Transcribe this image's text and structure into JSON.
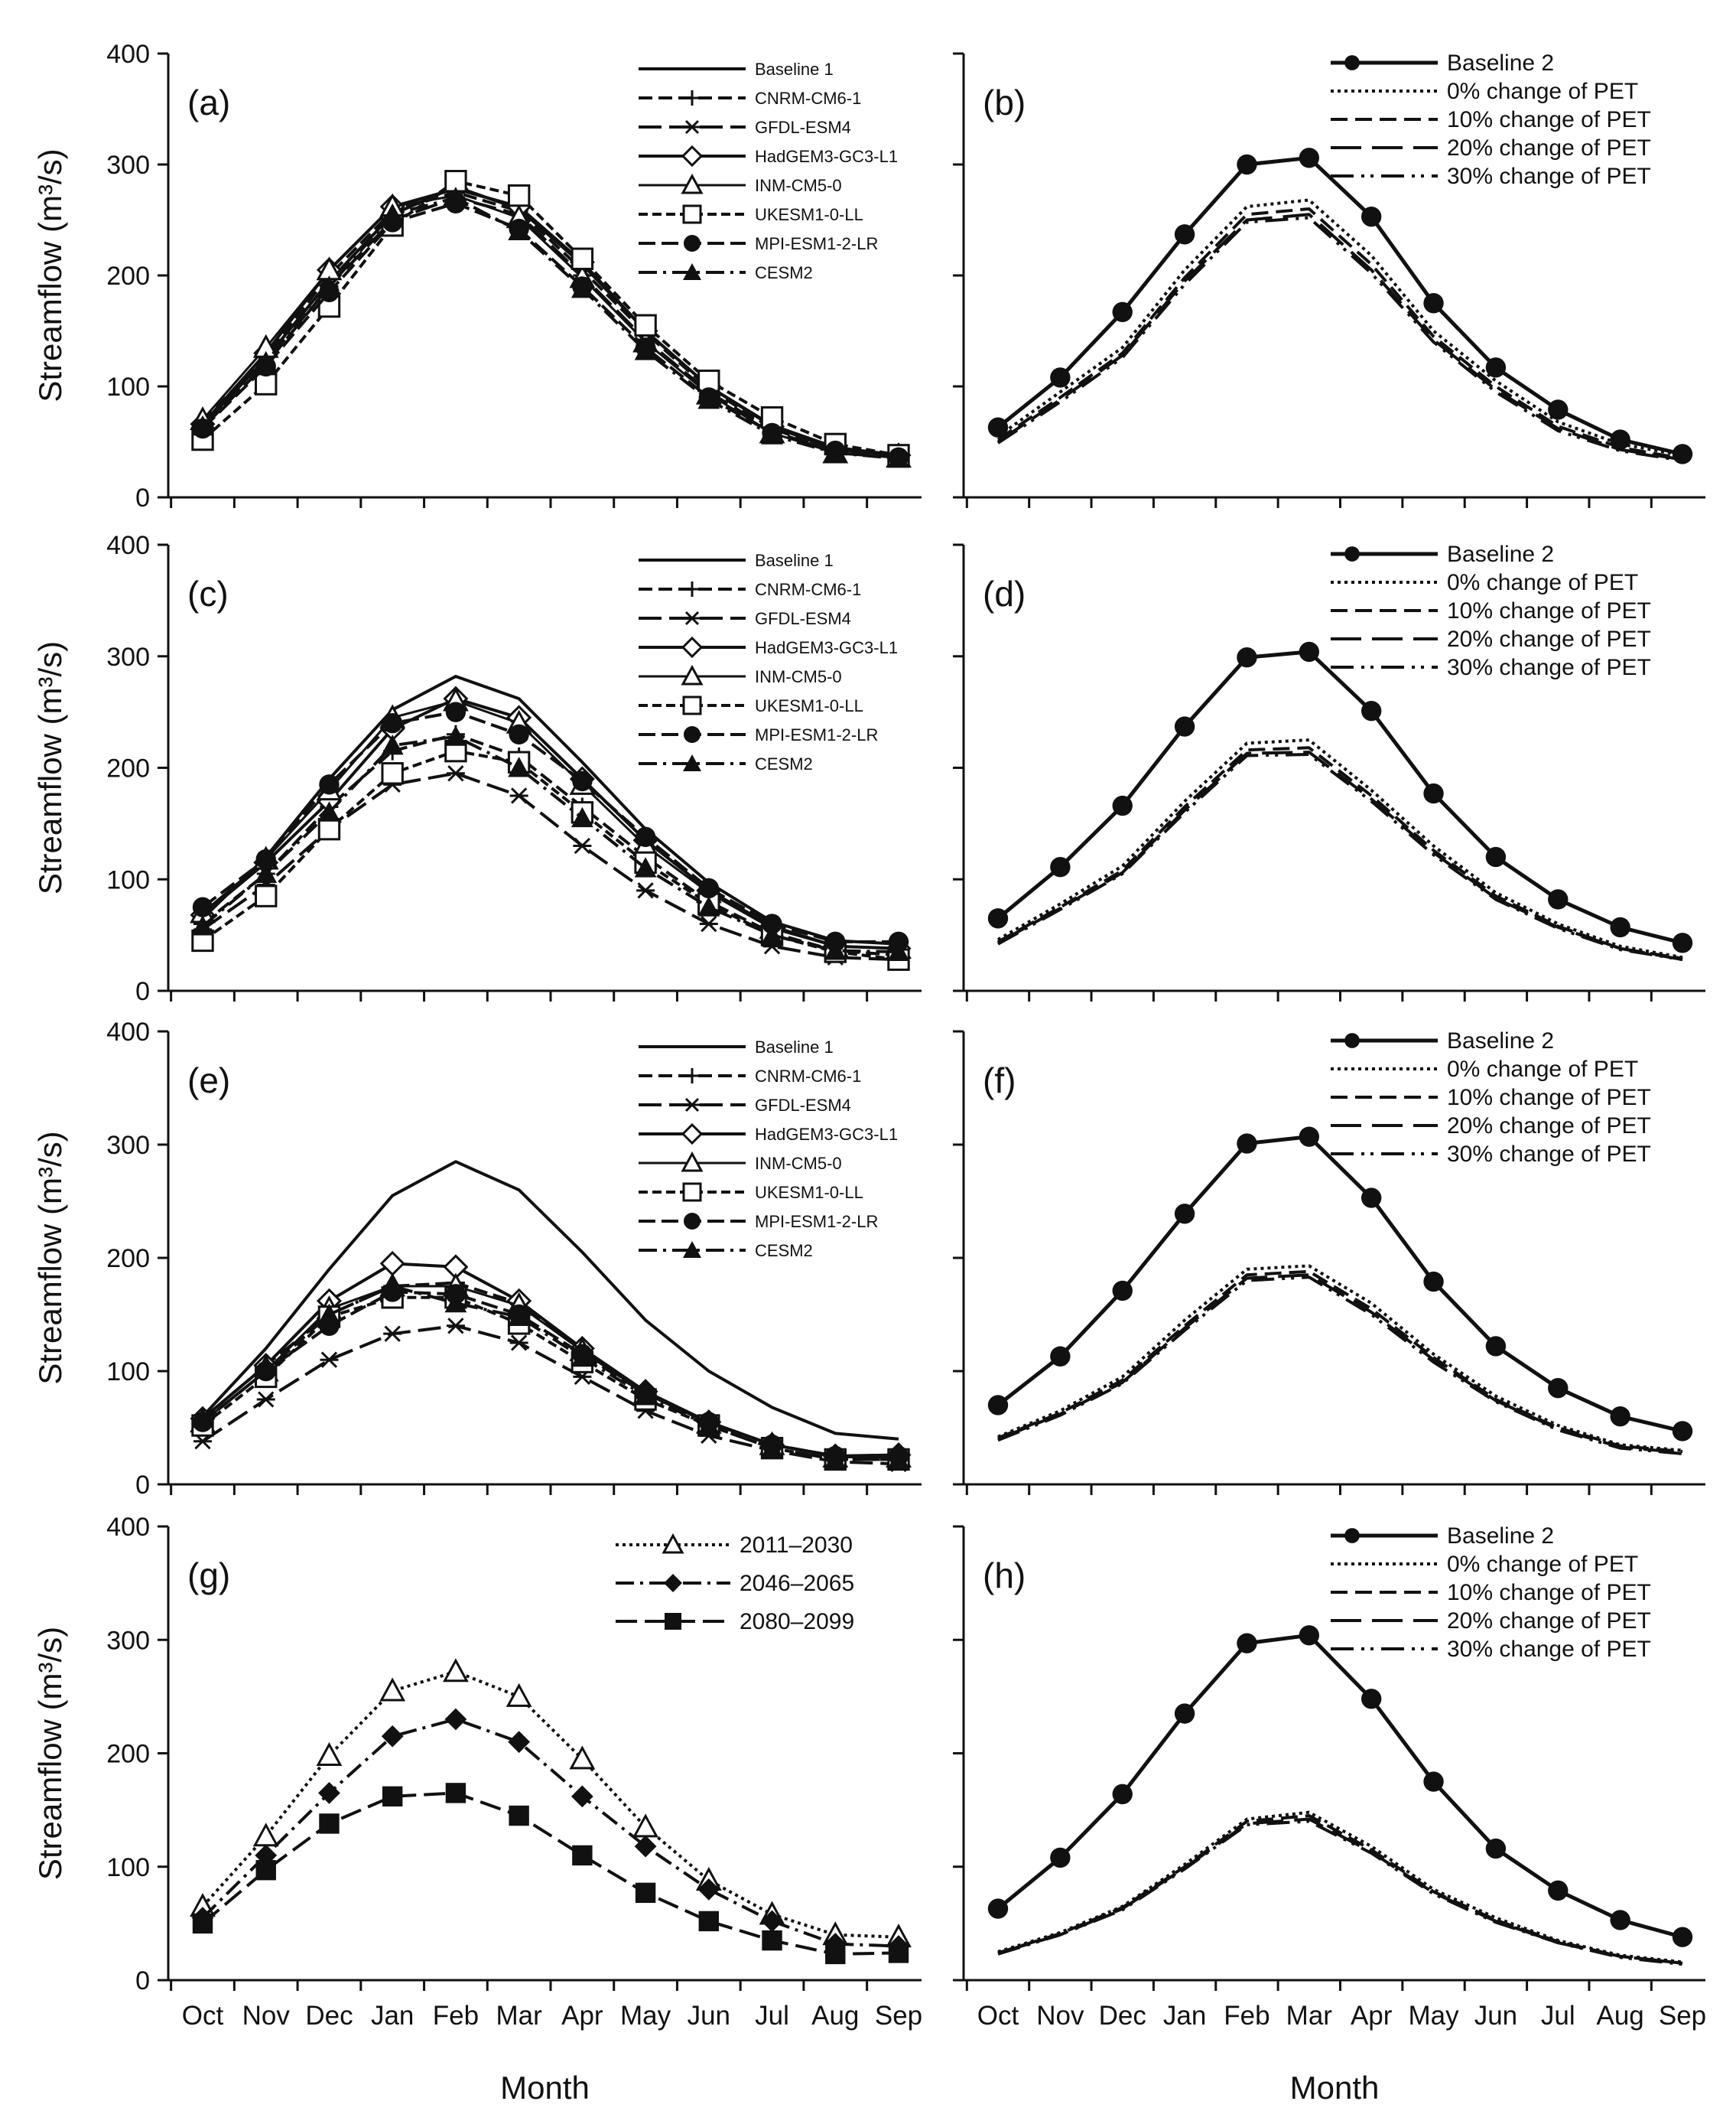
{
  "figure": {
    "xlabel": "Month",
    "ylabel": "Streamflow (m³/s)",
    "months": [
      "Oct",
      "Nov",
      "Dec",
      "Jan",
      "Feb",
      "Mar",
      "Apr",
      "May",
      "Jun",
      "Jul",
      "Aug",
      "Sep"
    ],
    "yticks": [
      "0",
      "100",
      "200",
      "300",
      "400"
    ]
  },
  "chart_data": [
    {
      "panel": "(a)",
      "type": "line",
      "ylim": [
        0,
        400
      ],
      "categories": [
        "Oct",
        "Nov",
        "Dec",
        "Jan",
        "Feb",
        "Mar",
        "Apr",
        "May",
        "Jun",
        "Jul",
        "Aug",
        "Sep"
      ],
      "series": [
        {
          "name": "Baseline 1",
          "values": [
            65,
            125,
            195,
            255,
            280,
            260,
            210,
            150,
            100,
            65,
            45,
            38
          ]
        },
        {
          "name": "CNRM-CM6-1",
          "values": [
            68,
            128,
            200,
            258,
            275,
            258,
            205,
            148,
            98,
            62,
            42,
            37
          ]
        },
        {
          "name": "GFDL-ESM4",
          "values": [
            63,
            120,
            190,
            250,
            270,
            255,
            200,
            142,
            95,
            60,
            40,
            36
          ]
        },
        {
          "name": "HadGEM3-GC3-L1",
          "values": [
            66,
            130,
            205,
            262,
            278,
            262,
            212,
            150,
            100,
            64,
            43,
            38
          ]
        },
        {
          "name": "INM-CM5-0",
          "values": [
            70,
            135,
            205,
            262,
            272,
            252,
            198,
            140,
            93,
            58,
            40,
            36
          ]
        },
        {
          "name": "UKESM1-0-LL",
          "values": [
            52,
            102,
            172,
            245,
            285,
            272,
            215,
            155,
            105,
            72,
            48,
            38
          ]
        },
        {
          "name": "MPI-ESM1-2-LR",
          "values": [
            62,
            118,
            185,
            248,
            265,
            242,
            190,
            135,
            90,
            58,
            42,
            36
          ]
        },
        {
          "name": "CESM2",
          "values": [
            64,
            122,
            190,
            255,
            270,
            240,
            188,
            132,
            88,
            56,
            40,
            35
          ]
        }
      ]
    },
    {
      "panel": "(b)",
      "type": "line",
      "ylim": [
        0,
        400
      ],
      "categories": [
        "Oct",
        "Nov",
        "Dec",
        "Jan",
        "Feb",
        "Mar",
        "Apr",
        "May",
        "Jun",
        "Jul",
        "Aug",
        "Sep"
      ],
      "series": [
        {
          "name": "Baseline 2",
          "values": [
            63,
            108,
            167,
            237,
            300,
            306,
            253,
            175,
            117,
            79,
            52,
            39
          ]
        },
        {
          "name": "0% change of PET",
          "values": [
            55,
            95,
            135,
            205,
            262,
            268,
            218,
            150,
            105,
            68,
            48,
            38
          ]
        },
        {
          "name": "10% change of PET",
          "values": [
            52,
            90,
            130,
            198,
            255,
            260,
            210,
            145,
            100,
            64,
            45,
            35
          ]
        },
        {
          "name": "20% change of PET",
          "values": [
            50,
            88,
            128,
            195,
            250,
            255,
            205,
            142,
            97,
            62,
            43,
            34
          ]
        },
        {
          "name": "30% change of PET",
          "values": [
            49,
            86,
            126,
            192,
            248,
            252,
            202,
            140,
            95,
            60,
            42,
            33
          ]
        }
      ]
    },
    {
      "panel": "(c)",
      "type": "line",
      "ylim": [
        0,
        400
      ],
      "categories": [
        "Oct",
        "Nov",
        "Dec",
        "Jan",
        "Feb",
        "Mar",
        "Apr",
        "May",
        "Jun",
        "Jul",
        "Aug",
        "Sep"
      ],
      "series": [
        {
          "name": "Baseline 1",
          "values": [
            65,
            120,
            190,
            252,
            282,
            262,
            205,
            145,
            97,
            62,
            45,
            42
          ]
        },
        {
          "name": "CNRM-CM6-1",
          "values": [
            60,
            105,
            165,
            215,
            230,
            210,
            165,
            120,
            80,
            52,
            36,
            32
          ]
        },
        {
          "name": "GFDL-ESM4",
          "values": [
            55,
            95,
            145,
            185,
            195,
            175,
            130,
            90,
            60,
            40,
            30,
            28
          ]
        },
        {
          "name": "HadGEM3-GC3-L1",
          "values": [
            68,
            115,
            170,
            235,
            262,
            245,
            190,
            135,
            90,
            58,
            40,
            38
          ]
        },
        {
          "name": "INM-CM5-0",
          "values": [
            70,
            118,
            180,
            245,
            260,
            240,
            185,
            130,
            88,
            56,
            40,
            38
          ]
        },
        {
          "name": "UKESM1-0-LL",
          "values": [
            45,
            85,
            145,
            195,
            215,
            205,
            160,
            115,
            78,
            50,
            35,
            28
          ]
        },
        {
          "name": "MPI-ESM1-2-LR",
          "values": [
            75,
            118,
            185,
            240,
            250,
            230,
            188,
            138,
            92,
            60,
            44,
            44
          ]
        },
        {
          "name": "CESM2",
          "values": [
            58,
            105,
            160,
            220,
            228,
            200,
            155,
            110,
            75,
            50,
            36,
            35
          ]
        }
      ]
    },
    {
      "panel": "(d)",
      "type": "line",
      "ylim": [
        0,
        400
      ],
      "categories": [
        "Oct",
        "Nov",
        "Dec",
        "Jan",
        "Feb",
        "Mar",
        "Apr",
        "May",
        "Jun",
        "Jul",
        "Aug",
        "Sep"
      ],
      "series": [
        {
          "name": "Baseline 2",
          "values": [
            65,
            111,
            166,
            237,
            299,
            304,
            251,
            177,
            120,
            82,
            57,
            43
          ]
        },
        {
          "name": "0% change of PET",
          "values": [
            46,
            78,
            112,
            170,
            222,
            225,
            180,
            130,
            88,
            60,
            40,
            30
          ]
        },
        {
          "name": "10% change of PET",
          "values": [
            44,
            75,
            108,
            165,
            216,
            218,
            175,
            126,
            85,
            58,
            38,
            29
          ]
        },
        {
          "name": "20% change of PET",
          "values": [
            43,
            74,
            106,
            162,
            213,
            214,
            172,
            124,
            83,
            57,
            38,
            28
          ]
        },
        {
          "name": "30% change of PET",
          "values": [
            42,
            73,
            105,
            160,
            211,
            212,
            170,
            122,
            82,
            56,
            37,
            28
          ]
        }
      ]
    },
    {
      "panel": "(e)",
      "type": "line",
      "ylim": [
        0,
        400
      ],
      "categories": [
        "Oct",
        "Nov",
        "Dec",
        "Jan",
        "Feb",
        "Mar",
        "Apr",
        "May",
        "Jun",
        "Jul",
        "Aug",
        "Sep"
      ],
      "series": [
        {
          "name": "Baseline 1",
          "values": [
            60,
            120,
            190,
            255,
            285,
            260,
            205,
            145,
            100,
            68,
            45,
            40
          ]
        },
        {
          "name": "CNRM-CM6-1",
          "values": [
            55,
            100,
            150,
            175,
            178,
            160,
            118,
            80,
            55,
            35,
            25,
            24
          ]
        },
        {
          "name": "GFDL-ESM4",
          "values": [
            38,
            75,
            110,
            133,
            140,
            125,
            95,
            65,
            43,
            30,
            20,
            18
          ]
        },
        {
          "name": "HadGEM3-GC3-L1",
          "values": [
            58,
            105,
            162,
            195,
            192,
            162,
            120,
            82,
            55,
            35,
            25,
            26
          ]
        },
        {
          "name": "INM-CM5-0",
          "values": [
            55,
            100,
            155,
            175,
            175,
            158,
            118,
            80,
            54,
            35,
            24,
            24
          ]
        },
        {
          "name": "UKESM1-0-LL",
          "values": [
            52,
            95,
            148,
            165,
            165,
            142,
            108,
            75,
            52,
            32,
            22,
            22
          ]
        },
        {
          "name": "MPI-ESM1-2-LR",
          "values": [
            55,
            100,
            140,
            170,
            168,
            150,
            115,
            80,
            55,
            35,
            25,
            25
          ]
        },
        {
          "name": "CESM2",
          "values": [
            58,
            105,
            150,
            175,
            160,
            148,
            112,
            78,
            52,
            32,
            22,
            22
          ]
        }
      ]
    },
    {
      "panel": "(f)",
      "type": "line",
      "ylim": [
        0,
        400
      ],
      "categories": [
        "Oct",
        "Nov",
        "Dec",
        "Jan",
        "Feb",
        "Mar",
        "Apr",
        "May",
        "Jun",
        "Jul",
        "Aug",
        "Sep"
      ],
      "series": [
        {
          "name": "Baseline 2",
          "values": [
            70,
            113,
            171,
            239,
            301,
            307,
            253,
            179,
            122,
            85,
            60,
            47
          ]
        },
        {
          "name": "0% change of PET",
          "values": [
            42,
            65,
            95,
            145,
            190,
            193,
            160,
            115,
            78,
            52,
            35,
            30
          ]
        },
        {
          "name": "10% change of PET",
          "values": [
            41,
            63,
            92,
            140,
            185,
            188,
            155,
            112,
            75,
            50,
            34,
            29
          ]
        },
        {
          "name": "20% change of PET",
          "values": [
            40,
            62,
            90,
            138,
            182,
            185,
            152,
            110,
            74,
            49,
            33,
            28
          ]
        },
        {
          "name": "30% change of PET",
          "values": [
            39,
            61,
            89,
            136,
            180,
            183,
            150,
            108,
            73,
            48,
            32,
            27
          ]
        }
      ]
    },
    {
      "panel": "(g)",
      "type": "line",
      "ylim": [
        0,
        400
      ],
      "categories": [
        "Oct",
        "Nov",
        "Dec",
        "Jan",
        "Feb",
        "Mar",
        "Apr",
        "May",
        "Jun",
        "Jul",
        "Aug",
        "Sep"
      ],
      "series": [
        {
          "name": "2011–2030",
          "values": [
            65,
            127,
            198,
            255,
            272,
            250,
            195,
            135,
            88,
            58,
            40,
            38
          ]
        },
        {
          "name": "2046–2065",
          "values": [
            55,
            110,
            165,
            215,
            230,
            210,
            162,
            118,
            80,
            52,
            32,
            30
          ]
        },
        {
          "name": "2080–2099",
          "values": [
            50,
            97,
            138,
            162,
            165,
            145,
            110,
            77,
            52,
            35,
            23,
            24
          ]
        }
      ]
    },
    {
      "panel": "(h)",
      "type": "line",
      "ylim": [
        0,
        400
      ],
      "categories": [
        "Oct",
        "Nov",
        "Dec",
        "Jan",
        "Feb",
        "Mar",
        "Apr",
        "May",
        "Jun",
        "Jul",
        "Aug",
        "Sep"
      ],
      "series": [
        {
          "name": "Baseline 2",
          "values": [
            63,
            108,
            164,
            235,
            297,
            304,
            248,
            175,
            116,
            79,
            53,
            38
          ]
        },
        {
          "name": "0% change of PET",
          "values": [
            25,
            42,
            65,
            102,
            142,
            148,
            118,
            80,
            55,
            35,
            22,
            16
          ]
        },
        {
          "name": "10% change of PET",
          "values": [
            24,
            41,
            64,
            100,
            140,
            145,
            115,
            78,
            53,
            34,
            21,
            15
          ]
        },
        {
          "name": "20% change of PET",
          "values": [
            24,
            40,
            63,
            99,
            138,
            142,
            113,
            77,
            52,
            33,
            21,
            15
          ]
        },
        {
          "name": "30% change of PET",
          "values": [
            23,
            40,
            62,
            98,
            137,
            140,
            112,
            76,
            51,
            33,
            20,
            14
          ]
        }
      ]
    }
  ]
}
